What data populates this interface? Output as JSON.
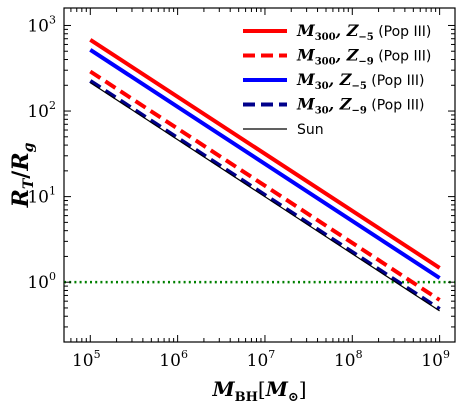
{
  "chart_data": {
    "type": "line",
    "title": "",
    "xscale": "log",
    "yscale": "log",
    "xlim": [
      50000,
      1500000000
    ],
    "ylim": [
      0.2,
      1600
    ],
    "xlabel": {
      "base": "M",
      "sub": "BH",
      "bracket_base": "M",
      "bracket_sub": "⊙"
    },
    "ylabel": {
      "num": "R",
      "num_sub": "T",
      "den": "R",
      "den_sub": "g"
    },
    "x_ticks": [
      {
        "value": 100000,
        "base": "10",
        "exp": "5"
      },
      {
        "value": 1000000,
        "base": "10",
        "exp": "6"
      },
      {
        "value": 10000000,
        "base": "10",
        "exp": "7"
      },
      {
        "value": 100000000,
        "base": "10",
        "exp": "8"
      },
      {
        "value": 1000000000,
        "base": "10",
        "exp": "9"
      }
    ],
    "y_ticks": [
      {
        "value": 1,
        "base": "10",
        "exp": "0"
      },
      {
        "value": 10,
        "base": "10",
        "exp": "1"
      },
      {
        "value": 100,
        "base": "10",
        "exp": "2"
      },
      {
        "value": 1000,
        "base": "10",
        "exp": "3"
      }
    ],
    "series": [
      {
        "name": "M300, Z−5 (Pop III)",
        "label_m": "M",
        "label_m_sub": "300",
        "label_z": "Z",
        "label_z_sub": "−5",
        "label_tail": " (Pop III)",
        "color": "#ff0000",
        "dash": "solid",
        "width": 4,
        "x": [
          100000,
          1000000000
        ],
        "y": [
          680,
          1.47
        ]
      },
      {
        "name": "M300, Z−9 (Pop III)",
        "label_m": "M",
        "label_m_sub": "300",
        "label_z": "Z",
        "label_z_sub": "−9",
        "label_tail": " (Pop III)",
        "color": "#ff0000",
        "dash": "dashed",
        "width": 4,
        "x": [
          100000,
          1000000000
        ],
        "y": [
          290,
          0.62
        ]
      },
      {
        "name": "M30, Z−5 (Pop III)",
        "label_m": "M",
        "label_m_sub": "30",
        "label_z": "Z",
        "label_z_sub": "−5",
        "label_tail": " (Pop III)",
        "color": "#0000ff",
        "dash": "solid",
        "width": 4,
        "x": [
          100000,
          1000000000
        ],
        "y": [
          520,
          1.12
        ]
      },
      {
        "name": "M30, Z−9 (Pop III)",
        "label_m": "M",
        "label_m_sub": "30",
        "label_z": "Z",
        "label_z_sub": "−9",
        "label_tail": " (Pop III)",
        "color": "#00008b",
        "dash": "dashed",
        "width": 4,
        "x": [
          100000,
          1000000000
        ],
        "y": [
          225,
          0.485
        ]
      },
      {
        "name": "Sun",
        "label_tail": "Sun",
        "color": "#000000",
        "dash": "solid",
        "width": 1.2,
        "x": [
          100000,
          1000000000
        ],
        "y": [
          215,
          0.462
        ]
      }
    ],
    "reference_lines": [
      {
        "y": 1,
        "color": "#008000",
        "style": "dotted"
      }
    ],
    "grid": false,
    "legend_position": "top-right"
  }
}
